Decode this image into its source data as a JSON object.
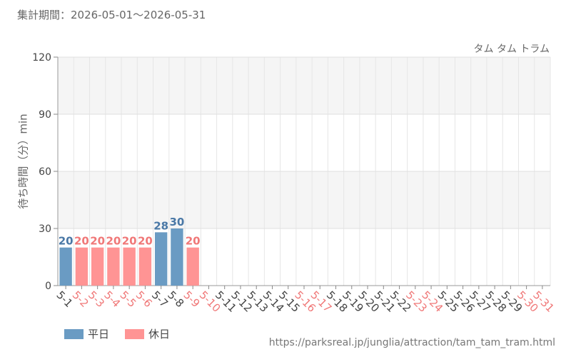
{
  "header": {
    "period": "集計期間：2026-05-01～2026-05-31",
    "attraction": "タム タム トラム"
  },
  "footer": {
    "legend": {
      "weekday": "平日",
      "holiday": "休日"
    },
    "source": "https://parksreal.jp/junglia/attraction/tam_tam_tram.html"
  },
  "colors": {
    "weekday": "#6a9bc3",
    "holiday": "#ff9494",
    "weekday_text": "#4a78a6",
    "holiday_text": "#f07878",
    "tick_text": "#444444"
  },
  "chart_data": {
    "type": "bar",
    "ylabel": "待ち時間（分）min",
    "ylim": [
      0,
      120
    ],
    "yticks": [
      0,
      30,
      60,
      90,
      120
    ],
    "grid": true,
    "legend_position": "bottom-left",
    "categories": [
      "5-1",
      "5-2",
      "5-3",
      "5-4",
      "5-5",
      "5-6",
      "5-7",
      "5-8",
      "5-9",
      "5-10",
      "5-11",
      "5-12",
      "5-13",
      "5-14",
      "5-15",
      "5-16",
      "5-17",
      "5-18",
      "5-19",
      "5-20",
      "5-21",
      "5-22",
      "5-23",
      "5-24",
      "5-25",
      "5-26",
      "5-27",
      "5-28",
      "5-29",
      "5-30",
      "5-31"
    ],
    "day_type": [
      "weekday",
      "holiday",
      "holiday",
      "holiday",
      "holiday",
      "holiday",
      "weekday",
      "weekday",
      "holiday",
      "holiday",
      "weekday",
      "weekday",
      "weekday",
      "weekday",
      "weekday",
      "holiday",
      "holiday",
      "weekday",
      "weekday",
      "weekday",
      "weekday",
      "weekday",
      "holiday",
      "holiday",
      "weekday",
      "weekday",
      "weekday",
      "weekday",
      "weekday",
      "holiday",
      "holiday"
    ],
    "series": [
      {
        "name": "待ち時間",
        "values": [
          20,
          20,
          20,
          20,
          20,
          20,
          28,
          30,
          20,
          null,
          null,
          null,
          null,
          null,
          null,
          null,
          null,
          null,
          null,
          null,
          null,
          null,
          null,
          null,
          null,
          null,
          null,
          null,
          null,
          null,
          null
        ]
      }
    ]
  }
}
